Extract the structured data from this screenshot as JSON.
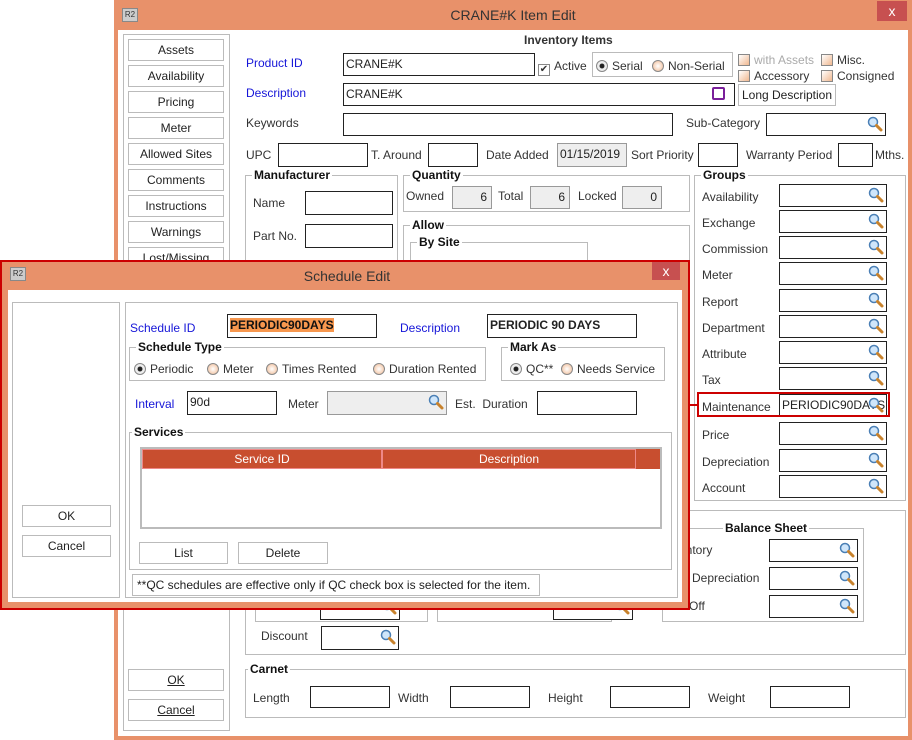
{
  "main": {
    "title": "CRANE#K Item Edit",
    "close": "x",
    "logo": "R2",
    "side_buttons": [
      "Assets",
      "Availability",
      "Pricing",
      "Meter",
      "Allowed Sites",
      "Comments",
      "Instructions",
      "Warnings",
      "Lost/Missing"
    ],
    "ok": "OK",
    "cancel": "Cancel",
    "section_title": "Inventory Items",
    "product_id_label": "Product ID",
    "product_id": "CRANE#K",
    "active_label": "Active",
    "serial_label": "Serial",
    "non_serial_label": "Non-Serial",
    "with_assets_label": "with Assets",
    "misc_label": "Misc.",
    "accessory_label": "Accessory",
    "consigned_label": "Consigned",
    "description_label": "Description",
    "description": "CRANE#K",
    "long_description": "Long Description",
    "keywords_label": "Keywords",
    "subcategory_label": "Sub-Category",
    "upc_label": "UPC",
    "taround_label": "T. Around",
    "date_added_label": "Date Added",
    "date_added": "01/15/2019",
    "sort_priority_label": "Sort Priority",
    "warranty_label": "Warranty Period",
    "mths": "Mths.",
    "manufacturer": {
      "title": "Manufacturer",
      "name_label": "Name",
      "part_label": "Part No."
    },
    "quantity": {
      "title": "Quantity",
      "owned_label": "Owned",
      "owned": "6",
      "total_label": "Total",
      "total": "6",
      "locked_label": "Locked",
      "locked": "0"
    },
    "allow": {
      "title": "Allow",
      "by_site": "By Site"
    },
    "groups": {
      "title": "Groups",
      "items": [
        "Availability",
        "Exchange",
        "Commission",
        "Meter",
        "Report",
        "Department",
        "Attribute",
        "Tax",
        "Maintenance",
        "Price",
        "Depreciation",
        "Account"
      ],
      "maintenance_value": "PERIODIC90DAYS"
    },
    "balance": {
      "title": "Balance Sheet",
      "items": [
        "entory",
        "Depreciation",
        "e Off"
      ]
    },
    "discount_label": "Discount",
    "carnet": {
      "title": "Carnet",
      "length": "Length",
      "width": "Width",
      "height": "Height",
      "weight": "Weight"
    }
  },
  "dialog": {
    "title": "Schedule Edit",
    "close": "x",
    "logo": "R2",
    "ok": "OK",
    "cancel": "Cancel",
    "schedule_id_label": "Schedule ID",
    "schedule_id": "PERIODIC90DAYS",
    "description_label": "Description",
    "description": "PERIODIC 90 DAYS",
    "schedule_type": {
      "title": "Schedule Type",
      "options": [
        "Periodic",
        "Meter",
        "Times Rented",
        "Duration Rented"
      ],
      "selected": "Periodic"
    },
    "mark_as": {
      "title": "Mark As",
      "options": [
        "QC**",
        "Needs Service"
      ],
      "selected": "QC**"
    },
    "interval_label": "Interval",
    "interval": "90d",
    "meter_label": "Meter",
    "est_duration_label": "Est.  Duration",
    "services": {
      "title": "Services",
      "columns": [
        "Service ID",
        "Description"
      ],
      "rows": []
    },
    "list": "List",
    "delete": "Delete",
    "note": "**QC schedules are effective only if QC check box is selected for the item."
  },
  "colors": {
    "titlebar": "#E8916A",
    "header": "#C84E2F",
    "highlight": "#CC0000",
    "selection": "#F7974E"
  }
}
